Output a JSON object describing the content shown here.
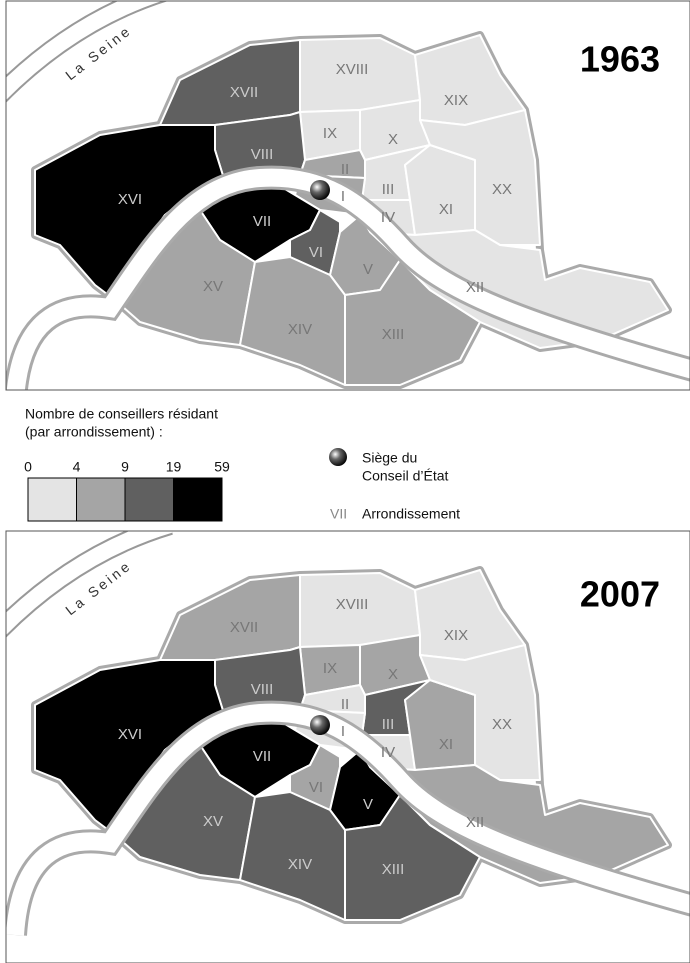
{
  "maps": [
    {
      "year": "1963",
      "river_label": "La Seine",
      "districts": [
        {
          "label": "XVIII",
          "color": "#e4e4e4"
        },
        {
          "label": "XIX",
          "color": "#e4e4e4"
        },
        {
          "label": "IX",
          "color": "#e4e4e4"
        },
        {
          "label": "X",
          "color": "#e4e4e4"
        },
        {
          "label": "XVII",
          "color": "#606060"
        },
        {
          "label": "VIII",
          "color": "#606060"
        },
        {
          "label": "II",
          "color": "#a5a5a5"
        },
        {
          "label": "III",
          "color": "#e4e4e4"
        },
        {
          "label": "I",
          "color": "#a5a5a5"
        },
        {
          "label": "IV",
          "color": "#e4e4e4"
        },
        {
          "label": "XI",
          "color": "#e4e4e4"
        },
        {
          "label": "XX",
          "color": "#e4e4e4"
        },
        {
          "label": "XVI",
          "color": "#000000"
        },
        {
          "label": "VII",
          "color": "#000000"
        },
        {
          "label": "VI",
          "color": "#606060"
        },
        {
          "label": "V",
          "color": "#a5a5a5"
        },
        {
          "label": "XV",
          "color": "#a5a5a5"
        },
        {
          "label": "XIV",
          "color": "#a5a5a5"
        },
        {
          "label": "XIII",
          "color": "#a5a5a5"
        },
        {
          "label": "XII",
          "color": "#e4e4e4"
        }
      ]
    },
    {
      "year": "2007",
      "river_label": "La Seine",
      "districts": [
        {
          "label": "XVIII",
          "color": "#e4e4e4"
        },
        {
          "label": "XIX",
          "color": "#e4e4e4"
        },
        {
          "label": "IX",
          "color": "#a5a5a5"
        },
        {
          "label": "X",
          "color": "#a5a5a5"
        },
        {
          "label": "XVII",
          "color": "#a5a5a5"
        },
        {
          "label": "VIII",
          "color": "#606060"
        },
        {
          "label": "II",
          "color": "#e4e4e4"
        },
        {
          "label": "III",
          "color": "#606060"
        },
        {
          "label": "I",
          "color": "#e4e4e4"
        },
        {
          "label": "IV",
          "color": "#e4e4e4"
        },
        {
          "label": "XI",
          "color": "#a5a5a5"
        },
        {
          "label": "XX",
          "color": "#e4e4e4"
        },
        {
          "label": "XVI",
          "color": "#000000"
        },
        {
          "label": "VII",
          "color": "#000000"
        },
        {
          "label": "VI",
          "color": "#a5a5a5"
        },
        {
          "label": "V",
          "color": "#000000"
        },
        {
          "label": "XV",
          "color": "#606060"
        },
        {
          "label": "XIV",
          "color": "#606060"
        },
        {
          "label": "XIII",
          "color": "#606060"
        },
        {
          "label": "XII",
          "color": "#a5a5a5"
        }
      ]
    }
  ],
  "legend": {
    "title_lines": [
      "Nombre de conseillers résidant",
      "(par arrondissement) :"
    ],
    "breaks": [
      0,
      4,
      9,
      19,
      59
    ],
    "colors": [
      "#e4e4e4",
      "#a5a5a5",
      "#606060",
      "#000000"
    ],
    "seat_lines": [
      "Siège du",
      "Conseil d’État"
    ],
    "key_sample": "VII",
    "key_label": "Arrondissement"
  }
}
